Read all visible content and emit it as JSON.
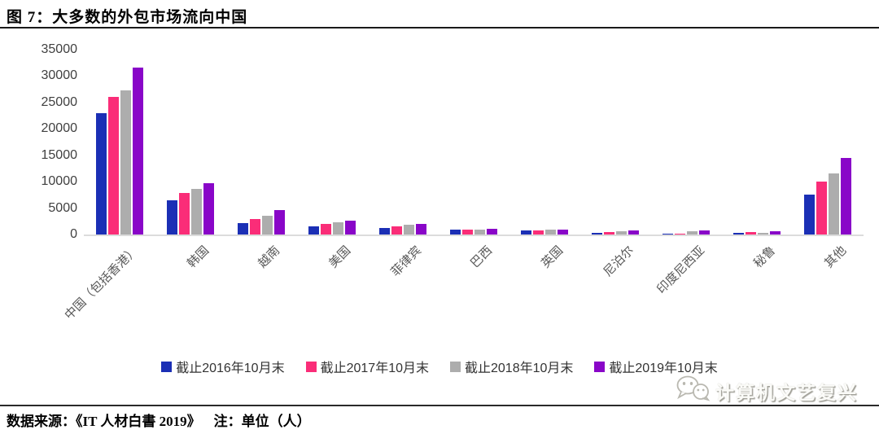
{
  "header": {
    "title": "图 7：大多数的外包市场流向中国"
  },
  "chart_data": {
    "type": "bar",
    "title": "图 7：大多数的外包市场流向中国",
    "categories": [
      "中国（包括香港）",
      "韩国",
      "越南",
      "美国",
      "菲律宾",
      "巴西",
      "英国",
      "尼泊尔",
      "印度尼西亚",
      "秘鲁",
      "其他"
    ],
    "series": [
      {
        "name": "截止2016年10月末",
        "color": "#1B2FB5",
        "values": [
          23000,
          6500,
          2100,
          1600,
          1200,
          900,
          800,
          350,
          80,
          300,
          7600
        ]
      },
      {
        "name": "截止2017年10月末",
        "color": "#FA2D78",
        "values": [
          26000,
          7800,
          2900,
          2000,
          1500,
          950,
          850,
          500,
          100,
          450,
          10100
        ]
      },
      {
        "name": "截止2018年10月末",
        "color": "#ADADAD",
        "values": [
          27300,
          8700,
          3600,
          2300,
          1800,
          1000,
          900,
          650,
          650,
          350,
          11600
        ]
      },
      {
        "name": "截止2019年10月末",
        "color": "#8906C8",
        "values": [
          31600,
          9700,
          4600,
          2700,
          2000,
          1050,
          950,
          800,
          800,
          550,
          14500
        ]
      }
    ],
    "ylim": [
      0,
      35000
    ],
    "ytick_step": 5000,
    "ytick_labels": [
      "35000",
      "30000",
      "25000",
      "20000",
      "15000",
      "10000",
      "5000",
      "0"
    ],
    "xlabel": "",
    "ylabel": "",
    "grid": false,
    "legend_position": "bottom",
    "axis_line_color": "#DCDCDC",
    "unit": "人"
  },
  "watermark": {
    "text": "计算机文艺复兴",
    "icon": "wechat-bubbles-icon"
  },
  "footer": {
    "source": "数据来源：《IT 人材白書 2019》",
    "note": "注：单位（人）"
  }
}
